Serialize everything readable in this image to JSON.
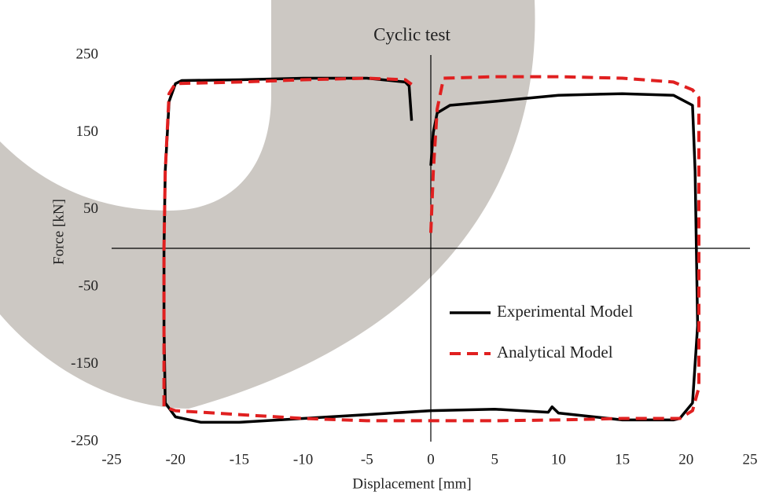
{
  "chart_data": {
    "type": "line",
    "title": "Cyclic test",
    "x_label": "Displacement [mm]",
    "y_label": "Force [kN]",
    "xlim": [
      -25,
      25
    ],
    "xticks": [
      -25,
      -20,
      -15,
      -10,
      -5,
      0,
      5,
      10,
      15,
      20,
      25
    ],
    "ylim": [
      -250,
      250
    ],
    "yticks": [
      -250,
      -150,
      -50,
      50,
      150,
      250
    ],
    "legend": "lower right",
    "series": [
      {
        "name": "Experimental Model",
        "color": "#000000",
        "dash": false,
        "x": [
          0,
          0.2,
          0.5,
          1.5,
          5,
          10,
          15,
          19,
          20.5,
          20.7,
          20.8,
          20.9,
          20.5,
          19.5,
          19,
          15,
          10,
          9.5,
          9.2,
          5,
          0,
          -5,
          -10,
          -15,
          -18,
          -20,
          -20.8,
          -20.9,
          -20.9,
          -20.8,
          -20.5,
          -20,
          -19.5,
          -15,
          -10,
          -5,
          -2,
          -1.7,
          -1.5
        ],
        "values": [
          107,
          150,
          175,
          185,
          190,
          198,
          200,
          198,
          185,
          100,
          0,
          -100,
          -200,
          -220,
          -222,
          -222,
          -213,
          -205,
          -212,
          -208,
          -210,
          -215,
          -220,
          -225,
          -225,
          -218,
          -200,
          -100,
          0,
          100,
          190,
          213,
          217,
          218,
          220,
          220,
          215,
          210,
          165
        ]
      },
      {
        "name": "Analytical Model",
        "color": "#e02020",
        "dash": true,
        "x": [
          0,
          0.2,
          0.5,
          1,
          5,
          10,
          15,
          19,
          20.5,
          21,
          21,
          21,
          21,
          21,
          20.5,
          19.5,
          15,
          10,
          5,
          0,
          -5,
          -10,
          -15,
          -20,
          -20.9,
          -20.9,
          -20.9,
          -20.8,
          -20.5,
          -20,
          -15,
          -10,
          -5,
          -2,
          -1.5
        ],
        "values": [
          20,
          100,
          180,
          220,
          222,
          222,
          220,
          215,
          205,
          195,
          100,
          0,
          -100,
          -180,
          -210,
          -220,
          -220,
          -222,
          -223,
          -223,
          -223,
          -220,
          -215,
          -210,
          -205,
          -100,
          0,
          100,
          200,
          213,
          215,
          218,
          220,
          218,
          212
        ]
      }
    ]
  }
}
